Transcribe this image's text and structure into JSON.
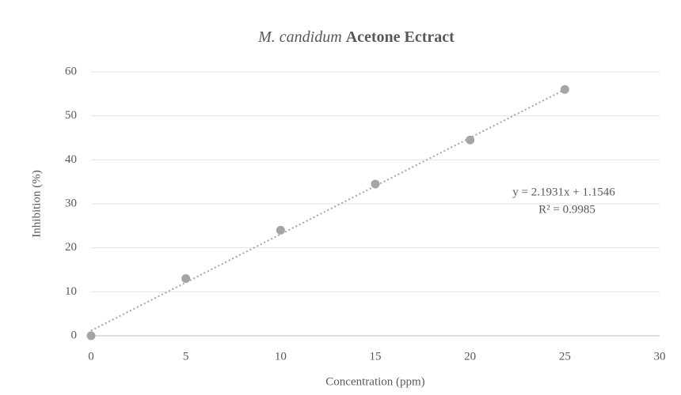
{
  "chart_data": {
    "type": "scatter",
    "title": [
      "M. candidum",
      "Acetone Ectract"
    ],
    "xlabel": "Concentration (ppm)",
    "ylabel": "Inhibition (%)",
    "x": [
      0,
      5,
      10,
      15,
      20,
      25
    ],
    "series": [
      {
        "name": "Inhibition",
        "color": "#a5a5a5",
        "values": [
          0,
          13,
          24,
          34.5,
          44.5,
          56
        ]
      }
    ],
    "trendline": {
      "slope": 2.1931,
      "intercept": 1.1546,
      "color": "#a5a5a5"
    },
    "annotations": [
      "y = 2.1931x + 1.1546",
      "R² = 0.9985"
    ],
    "xlim": [
      0,
      30
    ],
    "xticks": [
      0,
      5,
      10,
      15,
      20,
      25,
      30
    ],
    "ylim": [
      0,
      60
    ],
    "yticks": [
      0,
      10,
      20,
      30,
      40,
      50,
      60
    ],
    "grid": true
  }
}
